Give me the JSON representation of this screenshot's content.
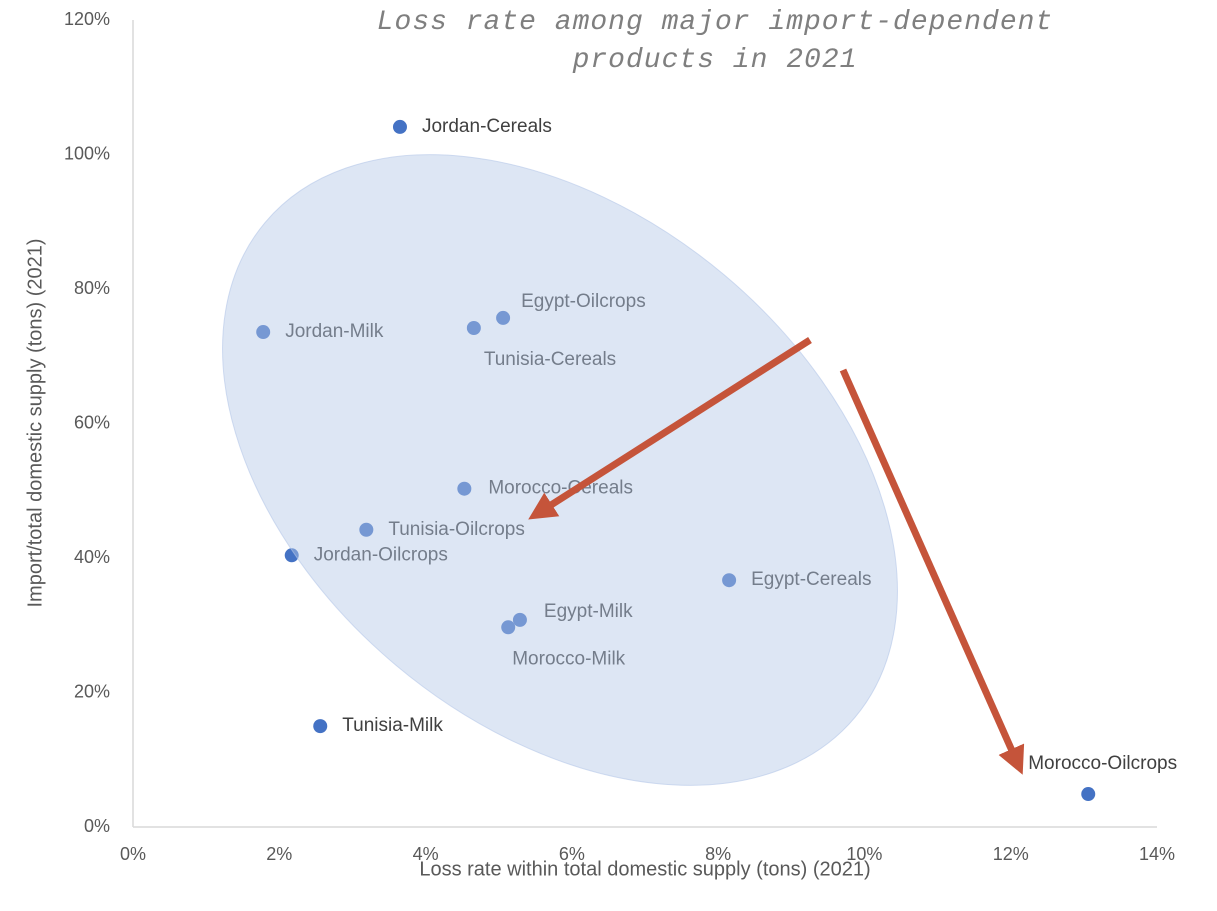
{
  "chart_data": {
    "type": "scatter",
    "title": "Loss rate among major import-dependent products in 2021",
    "x_label": "Loss rate within total domestic supply (tons) (2021)",
    "y_label": "Import/total domestic supply (tons) (2021)",
    "series": [
      {
        "name": "Products",
        "color": "#4472c4",
        "labels": [
          "Jordan-Cereals",
          "Jordan-Milk",
          "Egypt-Oilcrops",
          "Tunisia-Cereals",
          "Morocco-Cereals",
          "Tunisia-Oilcrops",
          "Jordan-Oilcrops",
          "Egypt-Cereals",
          "Egypt-Milk",
          "Morocco-Milk",
          "Tunisia-Milk",
          "Morocco-Oilcrops"
        ],
        "x": [
          3.65,
          1.78,
          5.06,
          4.66,
          4.53,
          3.19,
          2.17,
          8.15,
          5.29,
          5.13,
          2.56,
          13.06
        ],
        "values": [
          104.1,
          73.6,
          75.7,
          74.2,
          50.3,
          44.2,
          40.4,
          36.7,
          30.8,
          29.7,
          15.0,
          4.9
        ]
      }
    ],
    "xlim": [
      0,
      14
    ],
    "xticks": [
      {
        "value": 0,
        "label": "0%"
      },
      {
        "value": 2,
        "label": "2%"
      },
      {
        "value": 4,
        "label": "4%"
      },
      {
        "value": 6,
        "label": "6%"
      },
      {
        "value": 8,
        "label": "8%"
      },
      {
        "value": 10,
        "label": "10%"
      },
      {
        "value": 12,
        "label": "12%"
      },
      {
        "value": 14,
        "label": "14%"
      }
    ],
    "ylim": [
      0,
      120
    ],
    "yticks": [
      {
        "value": 0,
        "label": "0%"
      },
      {
        "value": 20,
        "label": "20%"
      },
      {
        "value": 40,
        "label": "40%"
      },
      {
        "value": 60,
        "label": "60%"
      },
      {
        "value": 80,
        "label": "80%"
      },
      {
        "value": 100,
        "label": "100%"
      },
      {
        "value": 120,
        "label": "120%"
      }
    ],
    "grid": false
  }
}
